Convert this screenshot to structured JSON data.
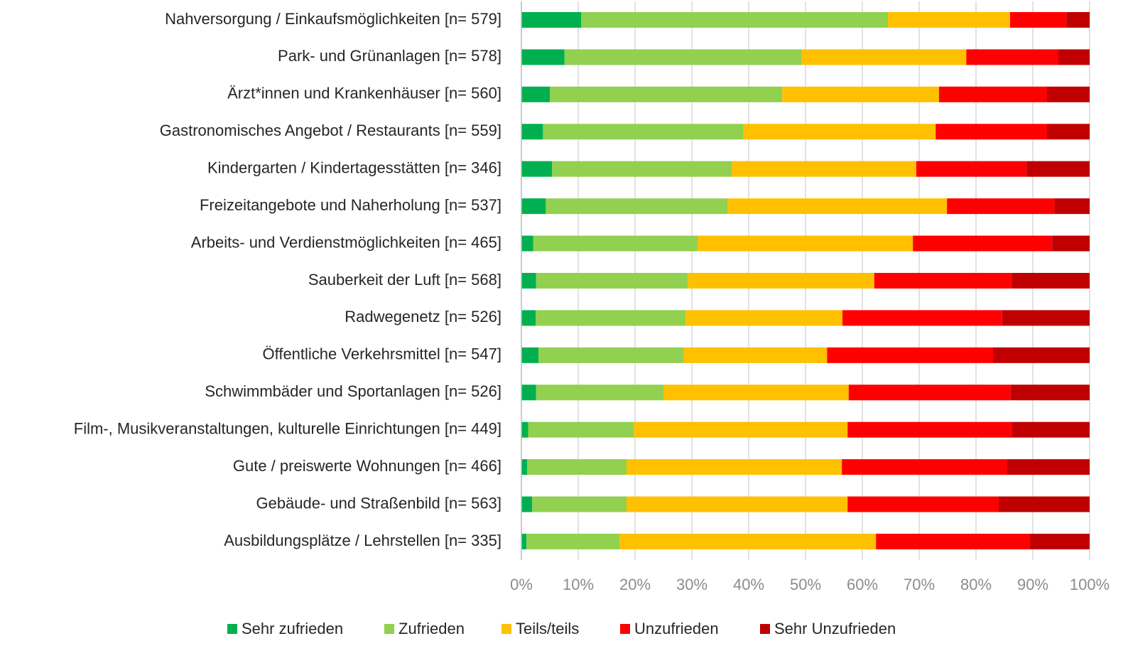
{
  "chart_data": {
    "type": "bar",
    "orientation": "horizontal",
    "stacked": true,
    "categories": [
      "Nahversorgung / Einkaufsmöglichkeiten [n= 579]",
      "Park- und Grünanlagen [n= 578]",
      "Ärzt*innen und Krankenhäuser [n= 560]",
      "Gastronomisches Angebot / Restaurants [n= 559]",
      "Kindergarten / Kindertagesstätten [n= 346]",
      "Freizeitangebote und Naherholung [n= 537]",
      "Arbeits- und Verdienstmöglichkeiten [n= 465]",
      "Sauberkeit der Luft [n= 568]",
      "Radwegenetz [n= 526]",
      "Öffentliche Verkehrsmittel [n= 547]",
      "Schwimmbäder und Sportanlagen [n= 526]",
      "Film-, Musikveranstaltungen, kulturelle Einrichtungen [n= 449]",
      "Gute / preiswerte Wohnungen [n= 466]",
      "Gebäude- und Straßenbild [n= 563]",
      "Ausbildungsplätze / Lehrstellen [n= 335]"
    ],
    "series": [
      {
        "name": "Sehr zufrieden",
        "color": "#00b050",
        "values": [
          10.5,
          7.6,
          5.0,
          3.8,
          5.4,
          4.3,
          2.1,
          2.6,
          2.5,
          3.0,
          2.6,
          1.2,
          1.0,
          1.9,
          0.9
        ]
      },
      {
        "name": "Zufrieden",
        "color": "#92d050",
        "values": [
          54.0,
          41.7,
          40.9,
          35.3,
          31.6,
          32.0,
          28.9,
          26.7,
          26.4,
          25.5,
          22.4,
          18.6,
          17.5,
          16.6,
          16.4
        ]
      },
      {
        "name": "Teils/teils",
        "color": "#ffc000",
        "values": [
          21.5,
          29.0,
          27.6,
          33.8,
          32.5,
          38.6,
          37.9,
          32.8,
          27.6,
          25.3,
          32.6,
          37.6,
          37.9,
          38.9,
          45.1
        ]
      },
      {
        "name": "Unzufrieden",
        "color": "#ff0000",
        "values": [
          9.9,
          16.2,
          19.0,
          19.6,
          19.4,
          18.9,
          24.5,
          24.2,
          28.1,
          29.2,
          28.5,
          28.9,
          29.1,
          26.6,
          27.0
        ]
      },
      {
        "name": "Sehr Unzufrieden",
        "color": "#c00000",
        "values": [
          4.1,
          5.5,
          7.5,
          7.5,
          11.1,
          6.2,
          6.6,
          13.7,
          15.4,
          17.0,
          13.9,
          13.7,
          14.5,
          16.0,
          10.6
        ]
      }
    ],
    "xlim": [
      0,
      100
    ],
    "xticks": [
      {
        "value": 0,
        "label": "0%"
      },
      {
        "value": 10,
        "label": "10%"
      },
      {
        "value": 20,
        "label": "20%"
      },
      {
        "value": 30,
        "label": "30%"
      },
      {
        "value": 40,
        "label": "40%"
      },
      {
        "value": 50,
        "label": "50%"
      },
      {
        "value": 60,
        "label": "60%"
      },
      {
        "value": 70,
        "label": "70%"
      },
      {
        "value": 80,
        "label": "80%"
      },
      {
        "value": 90,
        "label": "90%"
      },
      {
        "value": 100,
        "label": "100%"
      }
    ],
    "grid": true,
    "legend": "bottom"
  }
}
